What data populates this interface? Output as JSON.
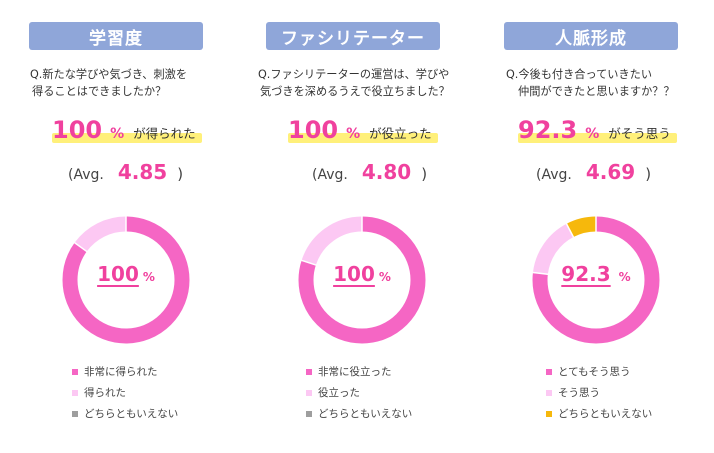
{
  "colors": {
    "header_bg": "#8fa6d9",
    "accent": "#f0419e",
    "highlight": "#fff07a",
    "very": "#f566c4",
    "some": "#fcc8f3",
    "neutral": "#9e9e9e",
    "neutral_alt": "#f6b80c"
  },
  "avg_label": "(Avg.",
  "avg_close": ")",
  "chart_data": [
    {
      "type": "pie",
      "header": "学習度",
      "question": [
        "Q.新たな学びや気づき、刺激を",
        "得ることはできましたか？"
      ],
      "headline_value": "100",
      "headline_unit": "%",
      "headline_text": "が得られた",
      "avg_value": "4.85",
      "center_value": "100",
      "center_unit": "%",
      "categories": [
        "非常に得られた",
        "得られた",
        "どちらともいえない"
      ],
      "values": [
        85,
        15,
        0
      ],
      "colors": [
        "#f566c4",
        "#fcc8f3",
        "#9e9e9e"
      ]
    },
    {
      "type": "pie",
      "header": "ファシリテーター",
      "question": [
        "Q.ファシリテーターの運営は、学びや",
        "気づきを深めるうえで役立ちました？"
      ],
      "headline_value": "100",
      "headline_unit": "%",
      "headline_text": "が役立った",
      "avg_value": "4.80",
      "center_value": "100",
      "center_unit": "%",
      "categories": [
        "非常に役立った",
        "役立った",
        "どちらともいえない"
      ],
      "values": [
        80,
        20,
        0
      ],
      "colors": [
        "#f566c4",
        "#fcc8f3",
        "#9e9e9e"
      ]
    },
    {
      "type": "pie",
      "header": "人脈形成",
      "question": [
        "Q.今後も付き合っていきたい",
        "仲間ができたと思いますか？？"
      ],
      "headline_value": "92.3",
      "headline_unit": "%",
      "headline_text": "がそう思う",
      "avg_value": "4.69",
      "center_value": "92.3",
      "center_unit": "%",
      "categories": [
        "とてもそう思う",
        "そう思う",
        "どちらともいえない"
      ],
      "values": [
        76.9,
        15.4,
        7.7
      ],
      "colors": [
        "#f566c4",
        "#fcc8f3",
        "#f6b80c"
      ]
    }
  ]
}
